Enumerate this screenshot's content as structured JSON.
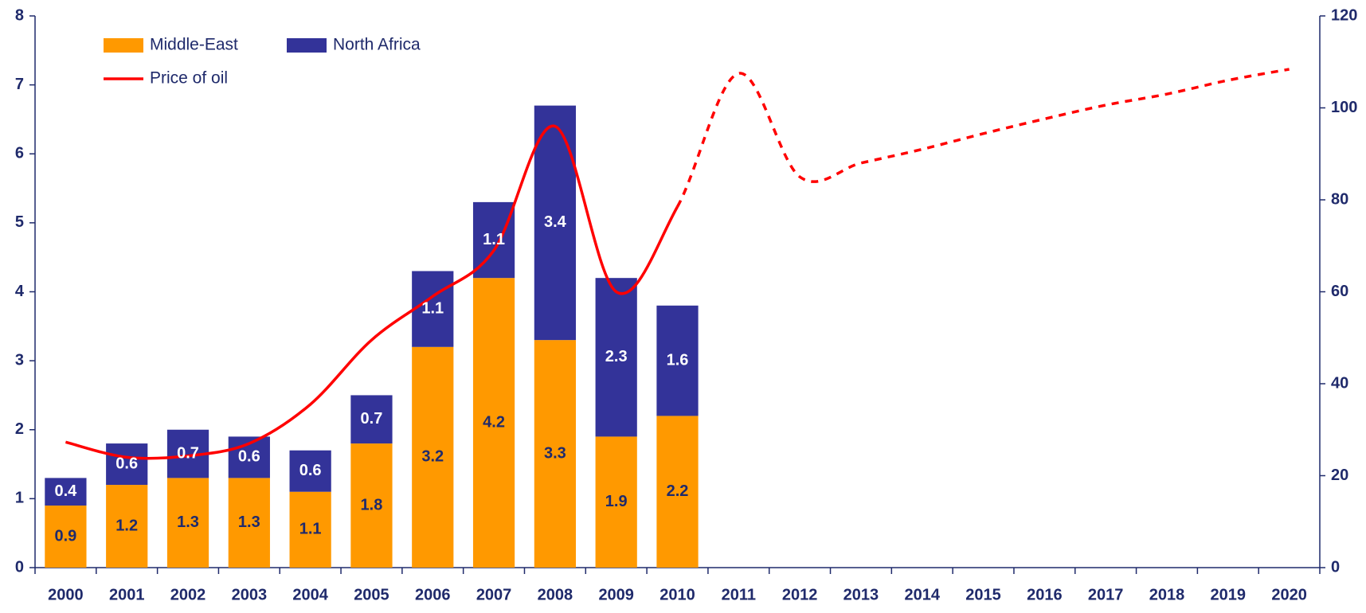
{
  "chart_data": {
    "type": "bar",
    "stacked": true,
    "categories": [
      "2000",
      "2001",
      "2002",
      "2003",
      "2004",
      "2005",
      "2006",
      "2007",
      "2008",
      "2009",
      "2010",
      "2011",
      "2012",
      "2013",
      "2014",
      "2015",
      "2016",
      "2017",
      "2018",
      "2019",
      "2020"
    ],
    "series": [
      {
        "name": "Middle-East",
        "color": "#FF9900",
        "label_color": "#1F2A6B",
        "values": [
          0.9,
          1.2,
          1.3,
          1.3,
          1.1,
          1.8,
          3.2,
          4.2,
          3.3,
          1.9,
          2.2,
          null,
          null,
          null,
          null,
          null,
          null,
          null,
          null,
          null,
          null
        ]
      },
      {
        "name": "North Africa",
        "color": "#333399",
        "label_color": "#FFFFFF",
        "values": [
          0.4,
          0.6,
          0.7,
          0.6,
          0.6,
          0.7,
          1.1,
          1.1,
          3.4,
          2.3,
          1.6,
          null,
          null,
          null,
          null,
          null,
          null,
          null,
          null,
          null,
          null
        ]
      },
      {
        "name": "Price of oil",
        "type": "line",
        "axis": "y2",
        "color": "#FF0000",
        "dash_from": "2010",
        "values": [
          27.3,
          24,
          24.3,
          27,
          35.5,
          49.5,
          59,
          69,
          96,
          60,
          78.5,
          107.5,
          85,
          88,
          91,
          94.4,
          97.6,
          100.6,
          103,
          106,
          108.4
        ]
      }
    ],
    "ylim": [
      0,
      8
    ],
    "yticks": [
      0,
      1,
      2,
      3,
      4,
      5,
      6,
      7,
      8
    ],
    "y2lim": [
      0,
      120
    ],
    "y2ticks": [
      0,
      20,
      40,
      60,
      80,
      100,
      120
    ],
    "legend": "top-left",
    "grid": false
  }
}
